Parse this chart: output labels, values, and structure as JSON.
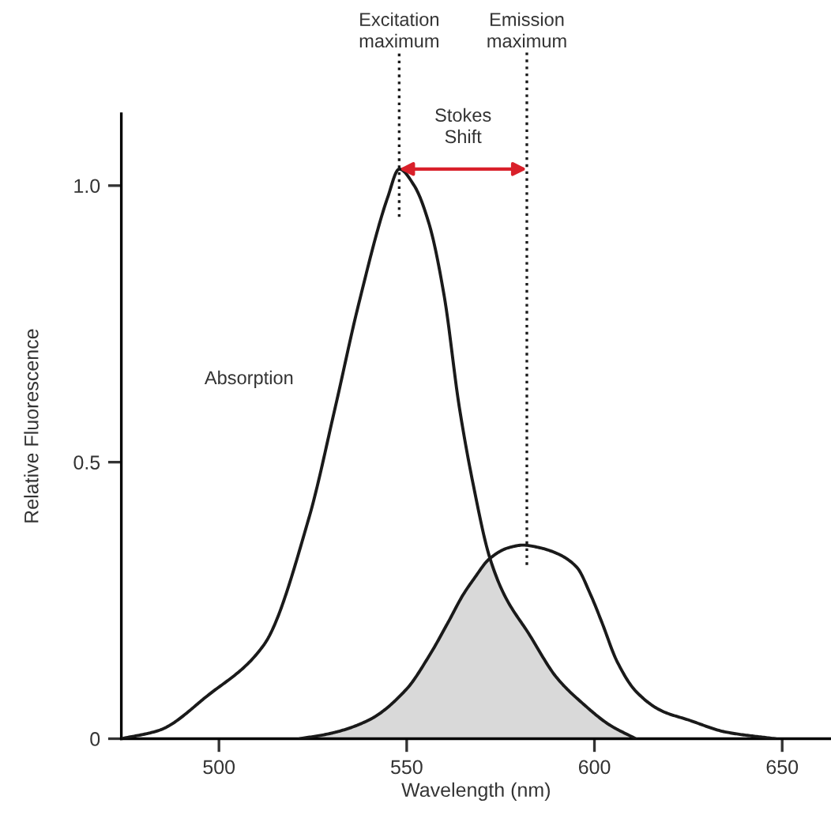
{
  "chart_data": {
    "type": "line",
    "xlabel": "Wavelength (nm)",
    "ylabel": "Relative Fluorescence",
    "xlim": [
      474,
      663
    ],
    "ylim": [
      0,
      1.13
    ],
    "xticks": [
      500,
      550,
      600,
      650
    ],
    "yticks": [
      0,
      0.5,
      {
        "value": 1.0,
        "label": "1.0"
      }
    ],
    "grid": false,
    "legend": false,
    "marker": "none",
    "line_style": "solid",
    "series": [
      {
        "color": "#1a1a1a",
        "x": [
          474,
          484,
          497,
          512,
          524,
          531,
          537,
          545,
          548,
          552,
          556,
          560,
          564,
          568,
          572,
          576,
          582.5,
          590,
          597,
          604,
          611
        ],
        "values": [
          0,
          0.015,
          0.078,
          0.17,
          0.4,
          0.6,
          0.78,
          0.98,
          1.03,
          1.0,
          0.93,
          0.8,
          0.6,
          0.45,
          0.33,
          0.26,
          0.19,
          0.11,
          0.063,
          0.025,
          0
        ]
      },
      {
        "color": "#1a1a1a",
        "x": [
          521.6,
          530,
          540,
          550,
          556,
          561,
          565,
          568,
          572,
          577,
          581,
          585.6,
          590,
          595.3,
          599,
          602,
          606,
          611,
          618,
          625,
          635,
          648
        ],
        "values": [
          0,
          0.01,
          0.034,
          0.09,
          0.15,
          0.21,
          0.26,
          0.29,
          0.325,
          0.345,
          0.35,
          0.345,
          0.335,
          0.31,
          0.26,
          0.21,
          0.14,
          0.086,
          0.05,
          0.034,
          0.012,
          0
        ]
      },
      {
        "type": "area",
        "color": "#d9d9d9",
        "x": [
          521.6,
          530,
          540,
          550,
          556,
          561,
          565,
          568,
          572,
          576,
          582.5,
          590,
          597,
          604,
          611
        ],
        "values": [
          0,
          0.01,
          0.034,
          0.09,
          0.15,
          0.21,
          0.26,
          0.29,
          0.325,
          0.26,
          0.19,
          0.11,
          0.063,
          0.025,
          0
        ]
      }
    ],
    "ref_lines": [
      {
        "axis": "x",
        "value": 548,
        "label": "Excitation maximum",
        "line_style": "dotted",
        "color": "#1a1a1a"
      },
      {
        "axis": "x",
        "value": 582,
        "label": "Emission maximum",
        "line_style": "dotted",
        "color": "#1a1a1a"
      }
    ],
    "annotations": [
      "Stokes Shift",
      "Absorption"
    ]
  }
}
